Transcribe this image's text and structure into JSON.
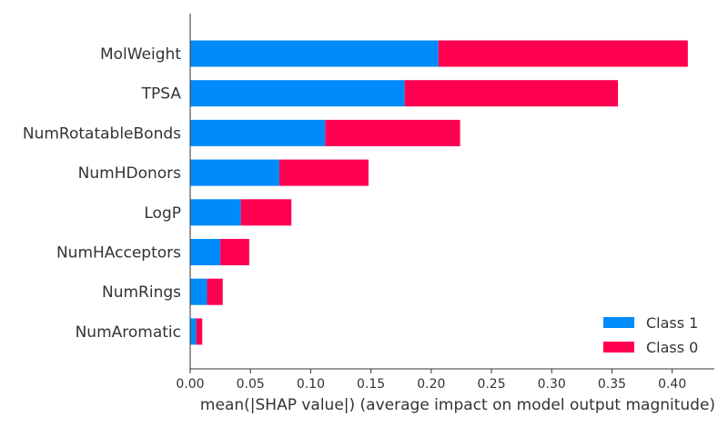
{
  "chart_data": {
    "type": "bar",
    "orientation": "horizontal",
    "stacked": true,
    "categories": [
      "MolWeight",
      "TPSA",
      "NumRotatableBonds",
      "NumHDonors",
      "LogP",
      "NumHAcceptors",
      "NumRings",
      "NumAromatic"
    ],
    "series": [
      {
        "name": "Class 1",
        "color": "#008bfb",
        "values": [
          0.206,
          0.178,
          0.112,
          0.074,
          0.042,
          0.025,
          0.014,
          0.005
        ]
      },
      {
        "name": "Class 0",
        "color": "#ff0051",
        "values": [
          0.207,
          0.177,
          0.112,
          0.074,
          0.042,
          0.024,
          0.013,
          0.005
        ]
      }
    ],
    "xlabel": "mean(|SHAP value|) (average impact on model output magnitude)",
    "ylabel": "",
    "xlim": [
      0,
      0.435
    ],
    "xticks": [
      "0.00",
      "0.05",
      "0.10",
      "0.15",
      "0.20",
      "0.25",
      "0.30",
      "0.35",
      "0.40"
    ],
    "xtick_values": [
      0,
      0.05,
      0.1,
      0.15,
      0.2,
      0.25,
      0.3,
      0.35,
      0.4
    ],
    "legend": {
      "position": "bottom-right",
      "entries": [
        "Class 1",
        "Class 0"
      ]
    },
    "grid": false
  }
}
